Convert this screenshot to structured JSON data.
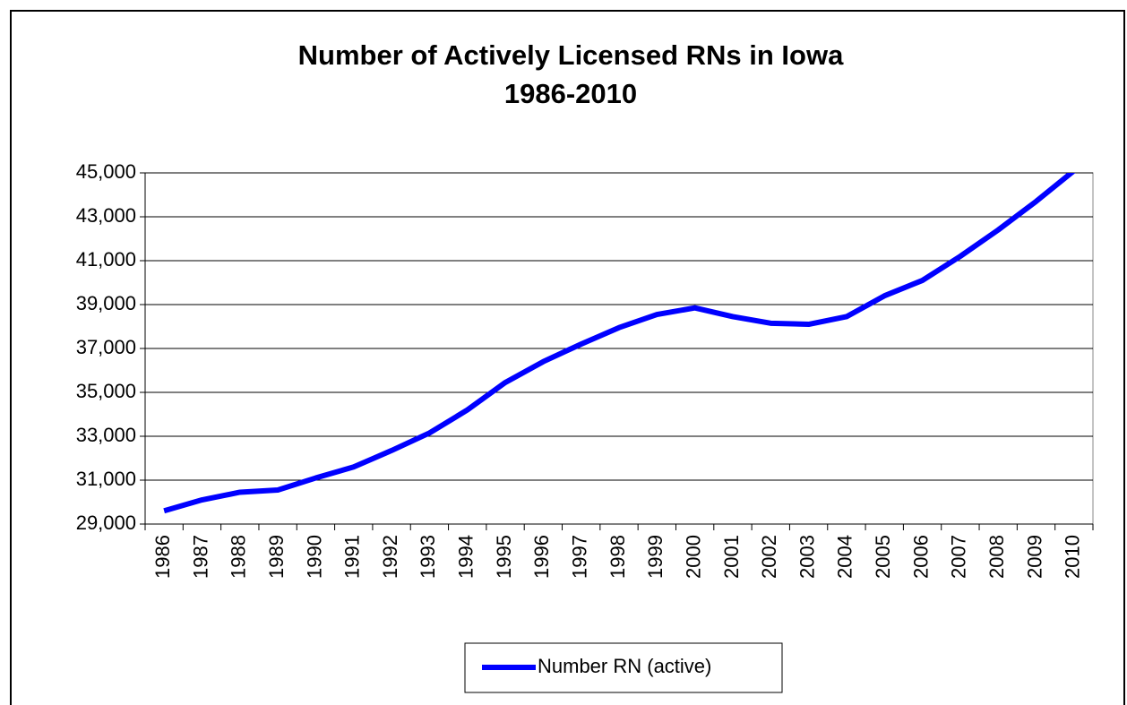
{
  "chart_data": {
    "type": "line",
    "title": "Number of Actively Licensed RNs in Iowa",
    "subtitle": "1986-2010",
    "categories": [
      "1986",
      "1987",
      "1988",
      "1989",
      "1990",
      "1991",
      "1992",
      "1993",
      "1994",
      "1995",
      "1996",
      "1997",
      "1998",
      "1999",
      "2000",
      "2001",
      "2002",
      "2003",
      "2004",
      "2005",
      "2006",
      "2007",
      "2008",
      "2009",
      "2010"
    ],
    "series": [
      {
        "name": "Number RN (active)",
        "color": "#0000ff",
        "values": [
          29600,
          30100,
          30450,
          30550,
          31100,
          31600,
          32350,
          33150,
          34200,
          35450,
          36400,
          37200,
          37950,
          38550,
          38850,
          38450,
          38150,
          38100,
          38450,
          39400,
          40100,
          41200,
          42400,
          43700,
          45100
        ]
      }
    ],
    "ylim": [
      29000,
      45000
    ],
    "yticks": [
      {
        "value": 29000,
        "label": "29,000"
      },
      {
        "value": 31000,
        "label": "31,000"
      },
      {
        "value": 33000,
        "label": "33,000"
      },
      {
        "value": 35000,
        "label": "35,000"
      },
      {
        "value": 37000,
        "label": "37,000"
      },
      {
        "value": 39000,
        "label": "39,000"
      },
      {
        "value": 41000,
        "label": "41,000"
      },
      {
        "value": 43000,
        "label": "43,000"
      },
      {
        "value": 45000,
        "label": "45,000"
      }
    ],
    "grid": true,
    "legend": "bottom"
  }
}
